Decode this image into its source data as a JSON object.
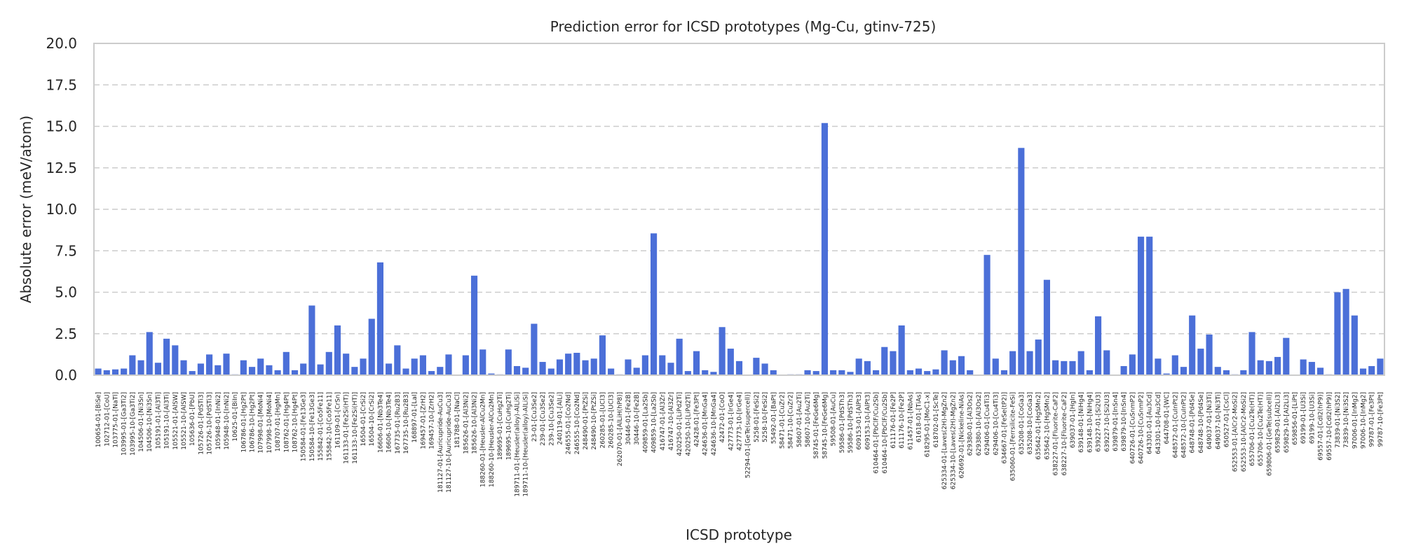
{
  "chart_data": {
    "type": "bar",
    "title": "Prediction error for ICSD prototypes (Mg-Cu, gtinv-725)",
    "xlabel": "ICSD prototype",
    "ylabel": "Absolute error (meV/atom)",
    "ylim": [
      0,
      20
    ],
    "yticks": [
      "0.0",
      "2.5",
      "5.0",
      "7.5",
      "10.0",
      "12.5",
      "15.0",
      "17.5",
      "20.0"
    ],
    "grid": "horizontal dashed",
    "bar_color": "#4b6fd8",
    "categories": [
      "100654-01-[BiSe]",
      "102712-01-[CoU]",
      "103775-01-[NaTl]",
      "103995-01-[Ga3Ti2]",
      "103995-10-[Ga3Ti2]",
      "104506-01-[Ni3Sn]",
      "104506-10-[Ni3Sn]",
      "105191-01-[Al3Ti]",
      "105191-10-[Al3Ti]",
      "105521-01-[AlSW]",
      "105521-10-[AlSW]",
      "105636-01-[PbU]",
      "105726-01-[PdSTi3]",
      "105726-10-[PdSTi3]",
      "105948-01-[InNi2]",
      "105948-10-[InNi2]",
      "10625-01-[BiIn]",
      "106786-01-[Hg2Pt]",
      "106786-10-[Hg2Pt]",
      "107998-01-[MoNi4]",
      "107998-10-[MoNi4]",
      "108707-01-[HgMn]",
      "108762-01-[Hg4Pt]",
      "108762-10-[Hg4Pt]",
      "150584-01-[Fe13Ge3]",
      "150584-10-[Fe13Ge3]",
      "155842-01-[Co5Fe11]",
      "155842-10-[Co5Fe11]",
      "161109-01-[CrSn]",
      "161133-01-[Fe2Si(HT)]",
      "161133-10-[Fe2Si(HT)]",
      "16504-01-[CrSi2]",
      "16504-10-[CrSi2]",
      "16606-01-[Nb3Te4]",
      "16606-10-[Nb3Te4]",
      "167735-01-[Ru2B3]",
      "167735-10-[Ru2B3]",
      "168897-01-[LaI]",
      "169457-01-[ZrH2]",
      "169457-10-[ZrH2]",
      "181127-01-[Auricupride-AuCu3]",
      "181127-10-[Auricupride-AuCu3]",
      "181788-01-[NaCl]",
      "185626-01-[Al3Ni2]",
      "185626-10-[Al3Ni2]",
      "188260-01-[Heusler-AlCu2Mn]",
      "188260-10-[Heusler-AlCu2Mn]",
      "189695-01-[CuHg2Ti]",
      "189695-10-[CuHg2Ti]",
      "189711-01-[Heusler(alloy)-AlLiSi]",
      "189711-10-[Heusler(alloy)-AlLiSi]",
      "23-01-[Cu3Se2]",
      "239-01-[Cu3Se2]",
      "239-10-[Cu3Se2]",
      "240119-01-[AlLi]",
      "246555-01-[Co2Nd]",
      "246555-10-[Co2Nd]",
      "248490-01-[PtZSi]",
      "248490-10-[PtZSi]",
      "260285-01-[UCl3]",
      "260285-10-[UCl3]",
      "262070-01-[AlLiH(hP8)]",
      "30446-01-[Fe2B]",
      "30446-10-[Fe2B]",
      "409859-01-[La2Sb]",
      "409859-10-[La2Sb]",
      "416747-01-[Al3Zr]",
      "416747-10-[Al3Zr]",
      "420250-01-[LiPd2Ti]",
      "420250-10-[LiPd2Ti]",
      "42428-01-[Fe3Pt]",
      "424636-01-[MnGa4]",
      "424636-10-[MnGa4]",
      "42472-01-[CoO]",
      "427773-01-[IrGe4]",
      "427773-10-[IrGe4]",
      "52294-01-[GeTe(supercell)]",
      "5258-01-[FeSi2]",
      "5258-10-[FeSi2]",
      "55492-01-[BaPt]",
      "58471-01-[CuZr2]",
      "58471-10-[CuZr2]",
      "58607-01-[Au2Ti]",
      "58607-10-[Au2Ti]",
      "58745-01-[FeGe6Mg]",
      "58745-10-[FeGe6Mg]",
      "59508-01-[AuCu]",
      "59586-01-[PdSTh3]",
      "59586-10-[PdSTh3]",
      "609153-01-[AlPt3]",
      "609153-10-[AlPt3]",
      "610464-01-[PbClF/Cu2Sb]",
      "610464-10-[PbClF/Cu2Sb]",
      "611176-01-[Fe2P]",
      "611176-10-[Fe2P]",
      "611457-01-[NbAs]",
      "61618-01-[TiAs]",
      "618295-01-[MoC1-x]",
      "618702-01-[ScTe]",
      "625334-01-[Laves(2H)-MgZn2]",
      "625334-10-[Laves(2H)-MgZn2]",
      "626692-01-[Nickeline-NiAs]",
      "629380-01-[Al3Os2]",
      "629380-10-[Al3Os2]",
      "629406-01-[Cu4Ti3]",
      "629406-10-[Cu4Ti3]",
      "634667-01-[FeSe(tP2)]",
      "635060-01-[Ferrsilicite-FeSi]",
      "635208-01-[CoGa3]",
      "635208-10-[CoGa3]",
      "635642-01-[HgSMn2]",
      "635642-10-[HgSMn2]",
      "638227-01-[Fluorite-CaF2]",
      "638227-10-[Fluorite-CaF2]",
      "639037-01-[HgIn]",
      "639148-01-[NiHg4]",
      "639148-10-[NiHg4]",
      "639227-01-[Si2U3]",
      "639227-10-[Si2U3]",
      "639879-01-[InSn4]",
      "639879-10-[InSn4]",
      "640726-01-[CuSnmP2]",
      "640726-10-[CuSnmP2]",
      "643301-01-[Au3Cd]",
      "643301-10-[Au3Cd]",
      "644708-01-[WC]",
      "648572-01-[CuInPt2]",
      "648572-10-[CuInPt2]",
      "648748-01-[Pd4Se]",
      "648748-10-[Pd4Se]",
      "649037-01-[Ni3Ti]",
      "649037-10-[Ni3Ti]",
      "650527-01-[CsCl]",
      "652553-01-[AlCr2-MoSi2]",
      "652553-10-[AlCr2-MoSi2]",
      "655706-01-[Cu2Te(HT)]",
      "655706-10-[Cu2Te(HT)]",
      "659806-01-[GeTe(subcell)]",
      "659829-01-[Al2Li3]",
      "659829-10-[Al2Li3]",
      "659856-01-[LiPt]",
      "69199-01-[U3Si]",
      "69199-10-[U3Si]",
      "69557-01-[CdI2(hP9)]",
      "69557-10-[CdI2(hP9)]",
      "73839-01-[Ni3S2]",
      "73839-10-[Ni3S2]",
      "97006-01-[InMg2]",
      "97006-10-[InMg2]",
      "99787-01-[Fe3Pt]",
      "99787-10-[Fe3Pt]"
    ],
    "values": [
      0.4,
      0.3,
      0.35,
      0.4,
      1.2,
      0.9,
      2.6,
      0.75,
      2.2,
      1.8,
      0.9,
      0.25,
      0.7,
      1.25,
      0.6,
      1.3,
      0.05,
      0.9,
      0.5,
      1.0,
      0.6,
      0.3,
      1.4,
      0.3,
      0.7,
      4.2,
      0.65,
      1.4,
      3.0,
      1.3,
      0.5,
      1.0,
      3.4,
      6.8,
      0.7,
      1.8,
      0.4,
      1.0,
      1.2,
      0.25,
      0.5,
      1.25,
      0.0,
      1.2,
      6.0,
      1.55,
      0.1,
      0.05,
      1.55,
      0.55,
      0.45,
      3.1,
      0.8,
      0.4,
      0.95,
      1.3,
      1.35,
      0.9,
      1.0,
      2.4,
      0.4,
      0.05,
      0.95,
      0.45,
      1.2,
      8.55,
      1.2,
      0.75,
      2.2,
      0.25,
      1.45,
      0.3,
      0.2,
      2.9,
      1.6,
      0.85,
      0.0,
      1.05,
      0.7,
      0.3,
      0.0,
      0.05,
      0.05,
      0.3,
      0.25,
      15.2,
      0.3,
      0.3,
      0.2,
      1.0,
      0.85,
      0.3,
      1.7,
      1.45,
      3.0,
      0.3,
      0.4,
      0.25,
      0.35,
      1.5,
      0.9,
      1.15,
      0.3,
      0.0,
      7.25,
      1.0,
      0.3,
      1.45,
      13.7,
      1.45,
      2.15,
      5.75,
      0.9,
      0.85,
      0.85,
      1.45,
      0.3,
      3.55,
      1.5,
      0.0,
      0.55,
      1.25,
      8.35,
      8.35,
      1.0,
      0.1,
      1.2,
      0.5,
      3.6,
      1.6,
      2.45,
      0.5,
      0.3,
      0.05,
      0.3,
      2.6,
      0.9,
      0.85,
      1.1,
      2.25,
      0.0,
      0.95,
      0.8,
      0.45,
      0.05,
      5.0,
      5.2,
      3.6,
      0.4,
      0.55,
      1.0
    ]
  }
}
